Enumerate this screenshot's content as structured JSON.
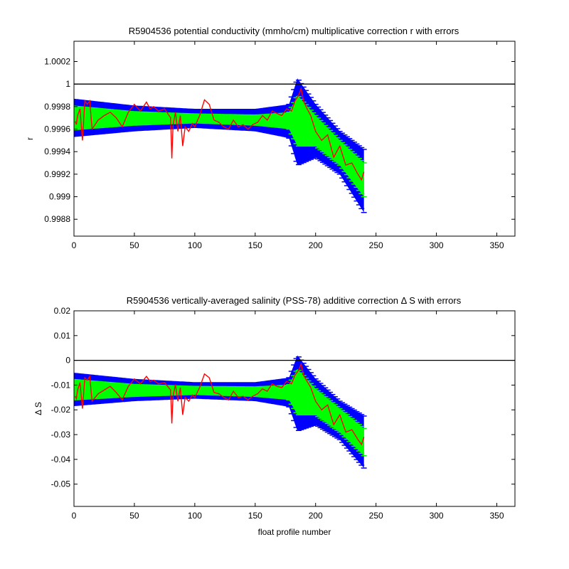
{
  "chart_data": [
    {
      "type": "line",
      "title": "R5904536 potential conductivity (mmho/cm) multiplicative correction r with errors",
      "xlabel": "",
      "ylabel": "r",
      "xlim": [
        0,
        365
      ],
      "ylim": [
        0.99865,
        1.00038
      ],
      "xticks": [
        "0",
        "50",
        "100",
        "150",
        "200",
        "250",
        "300",
        "350"
      ],
      "yticks": [
        "0.9988",
        "0.999",
        "0.9992",
        "0.9994",
        "0.9996",
        "0.9998",
        "1",
        "1.0002"
      ],
      "reference_line": 1.0,
      "colors": {
        "outer_band": "#0000ff",
        "inner_band": "#00ff00",
        "series": "#ff0000",
        "reference": "#000000"
      },
      "series": [
        {
          "x": [
            1,
            2,
            3,
            5,
            7,
            9,
            11,
            13,
            15,
            20,
            25,
            30,
            35,
            40,
            45,
            50,
            55,
            60,
            63,
            66,
            70,
            75,
            80,
            81,
            82,
            84,
            86,
            88,
            90,
            92,
            95,
            98,
            100,
            104,
            108,
            112,
            116,
            120,
            124,
            128,
            132,
            136,
            140,
            144,
            148,
            152,
            156,
            160,
            164,
            168,
            172,
            176,
            180,
            183,
            186,
            188,
            190,
            193,
            196,
            200,
            205,
            210,
            215,
            220,
            225,
            230,
            235,
            238,
            240
          ],
          "y": [
            0.99967,
            0.99964,
            0.99972,
            0.99978,
            0.9995,
            0.99985,
            0.99982,
            0.99985,
            0.9996,
            0.99968,
            0.99972,
            0.99975,
            0.9997,
            0.99962,
            0.99975,
            0.99982,
            0.99976,
            0.99984,
            0.99978,
            0.9998,
            0.99976,
            0.99978,
            0.9997,
            0.99934,
            0.99963,
            0.99975,
            0.99958,
            0.99972,
            0.99945,
            0.99962,
            0.99958,
            0.99965,
            0.99962,
            0.99972,
            0.99986,
            0.99982,
            0.99968,
            0.99966,
            0.99962,
            0.9996,
            0.99968,
            0.99962,
            0.99964,
            0.9996,
            0.99964,
            0.99966,
            0.99972,
            0.99968,
            0.99976,
            0.99974,
            0.99972,
            0.99978,
            0.99976,
            0.99985,
            0.9999,
            0.99996,
            0.99985,
            0.99978,
            0.99972,
            0.99958,
            0.9995,
            0.99955,
            0.99935,
            0.99945,
            0.99928,
            0.9993,
            0.9992,
            0.99915,
            0.99922
          ]
        }
      ],
      "bands": [
        {
          "x": 0,
          "outer": [
            0.99953,
            0.99987
          ],
          "inner": [
            0.99959,
            0.99981
          ]
        },
        {
          "x": 50,
          "outer": [
            0.99958,
            0.99981
          ],
          "inner": [
            0.99963,
            0.99976
          ]
        },
        {
          "x": 100,
          "outer": [
            0.99961,
            0.99978
          ],
          "inner": [
            0.99965,
            0.99974
          ]
        },
        {
          "x": 150,
          "outer": [
            0.99958,
            0.99978
          ],
          "inner": [
            0.99963,
            0.99973
          ]
        },
        {
          "x": 178,
          "outer": [
            0.99952,
            0.99982
          ],
          "inner": [
            0.9996,
            0.99975
          ]
        },
        {
          "x": 185,
          "outer": [
            0.99928,
            1.00005
          ],
          "inner": [
            0.99945,
            0.9999
          ]
        },
        {
          "x": 200,
          "outer": [
            0.99935,
            0.99982
          ],
          "inner": [
            0.99945,
            0.99972
          ]
        },
        {
          "x": 220,
          "outer": [
            0.9992,
            0.99958
          ],
          "inner": [
            0.99928,
            0.9995
          ]
        },
        {
          "x": 240,
          "outer": [
            0.99886,
            0.99942
          ],
          "inner": [
            0.999,
            0.9993
          ]
        }
      ]
    },
    {
      "type": "line",
      "title": "R5904536 vertically-averaged salinity (PSS-78) additive correction Δ S with errors",
      "xlabel": "float profile number",
      "ylabel": "Δ S",
      "xlim": [
        0,
        365
      ],
      "ylim": [
        -0.059,
        0.02
      ],
      "xticks": [
        "0",
        "50",
        "100",
        "150",
        "200",
        "250",
        "300",
        "350"
      ],
      "yticks": [
        "-0.05",
        "-0.04",
        "-0.03",
        "-0.02",
        "-0.01",
        "0",
        "0.01",
        "0.02"
      ],
      "reference_line": 0,
      "colors": {
        "outer_band": "#0000ff",
        "inner_band": "#00ff00",
        "series": "#ff0000",
        "reference": "#000000"
      },
      "series": [
        {
          "x": [
            1,
            2,
            3,
            5,
            7,
            9,
            11,
            13,
            15,
            20,
            25,
            30,
            35,
            40,
            45,
            50,
            55,
            60,
            63,
            66,
            70,
            75,
            80,
            81,
            82,
            84,
            86,
            88,
            90,
            92,
            95,
            98,
            100,
            104,
            108,
            112,
            116,
            120,
            124,
            128,
            132,
            136,
            140,
            144,
            148,
            152,
            156,
            160,
            164,
            168,
            172,
            176,
            180,
            183,
            186,
            188,
            190,
            193,
            196,
            200,
            205,
            210,
            215,
            220,
            225,
            230,
            235,
            238,
            240
          ],
          "y": [
            -0.0145,
            -0.0155,
            -0.012,
            -0.009,
            -0.0195,
            -0.007,
            -0.008,
            -0.0065,
            -0.0165,
            -0.0135,
            -0.012,
            -0.0105,
            -0.013,
            -0.016,
            -0.0105,
            -0.0075,
            -0.0095,
            -0.0065,
            -0.0085,
            -0.008,
            -0.0095,
            -0.009,
            -0.012,
            -0.0255,
            -0.0145,
            -0.0098,
            -0.0165,
            -0.011,
            -0.022,
            -0.015,
            -0.0165,
            -0.014,
            -0.015,
            -0.011,
            -0.0055,
            -0.007,
            -0.013,
            -0.0135,
            -0.015,
            -0.016,
            -0.0125,
            -0.015,
            -0.0145,
            -0.016,
            -0.0145,
            -0.0135,
            -0.0115,
            -0.0125,
            -0.0095,
            -0.0105,
            -0.011,
            -0.0085,
            -0.0095,
            -0.006,
            -0.004,
            -0.0015,
            -0.006,
            -0.0085,
            -0.011,
            -0.0165,
            -0.02,
            -0.018,
            -0.026,
            -0.022,
            -0.029,
            -0.028,
            -0.032,
            -0.034,
            -0.031
          ]
        }
      ],
      "bands": [
        {
          "x": 0,
          "outer": [
            -0.0185,
            -0.005
          ],
          "inner": [
            -0.0162,
            -0.0075
          ]
        },
        {
          "x": 50,
          "outer": [
            -0.0165,
            -0.0075
          ],
          "inner": [
            -0.0148,
            -0.0095
          ]
        },
        {
          "x": 100,
          "outer": [
            -0.0155,
            -0.0088
          ],
          "inner": [
            -0.014,
            -0.0103
          ]
        },
        {
          "x": 150,
          "outer": [
            -0.0165,
            -0.0088
          ],
          "inner": [
            -0.0148,
            -0.0105
          ]
        },
        {
          "x": 178,
          "outer": [
            -0.0188,
            -0.007
          ],
          "inner": [
            -0.016,
            -0.0098
          ]
        },
        {
          "x": 185,
          "outer": [
            -0.0285,
            0.002
          ],
          "inner": [
            -0.022,
            -0.0035
          ]
        },
        {
          "x": 200,
          "outer": [
            -0.026,
            -0.0075
          ],
          "inner": [
            -0.022,
            -0.0115
          ]
        },
        {
          "x": 220,
          "outer": [
            -0.032,
            -0.0165
          ],
          "inner": [
            -0.029,
            -0.0195
          ]
        },
        {
          "x": 240,
          "outer": [
            -0.0435,
            -0.0225
          ],
          "inner": [
            -0.0385,
            -0.0275
          ]
        }
      ]
    }
  ]
}
